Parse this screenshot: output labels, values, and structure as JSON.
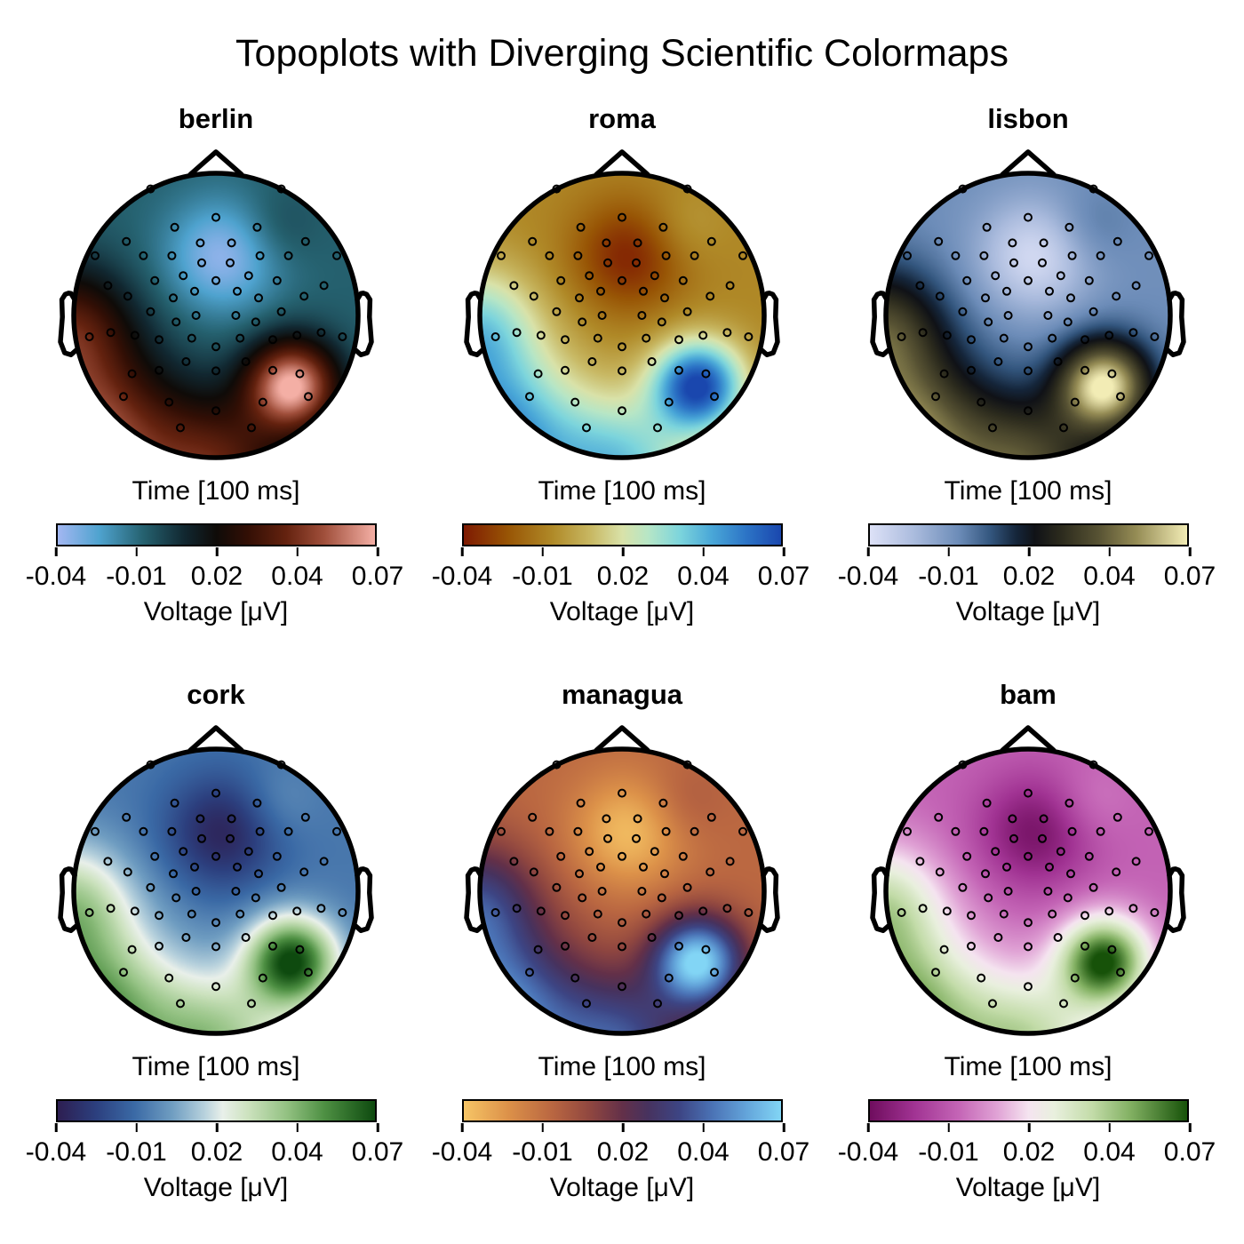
{
  "figure_title": "Topoplots with Diverging Scientific Colormaps",
  "chart_data": {
    "type": "topomap_grid",
    "rows": 2,
    "cols": 3,
    "time_label": "Time [100 ms]",
    "colorbar_label": "Voltage [μV]",
    "colorbar_ticks": [
      "-0.04",
      "-0.01",
      "0.02",
      "0.04",
      "0.07"
    ],
    "colorbar_tick_positions": [
      0,
      0.25,
      0.5,
      0.75,
      1
    ],
    "value_range": {
      "vmin": -0.04,
      "vmax": 0.07
    },
    "subplots": [
      {
        "title": "berlin",
        "colormap": [
          [
            0.0,
            "#A3B7F2"
          ],
          [
            0.13,
            "#4FA3CF"
          ],
          [
            0.27,
            "#25616F"
          ],
          [
            0.4,
            "#112730"
          ],
          [
            0.5,
            "#0F0B08"
          ],
          [
            0.6,
            "#330F05"
          ],
          [
            0.72,
            "#64220F"
          ],
          [
            0.84,
            "#A04F3B"
          ],
          [
            1.0,
            "#F4AFA5"
          ]
        ]
      },
      {
        "title": "roma",
        "colormap": [
          [
            0.0,
            "#7E1A02"
          ],
          [
            0.14,
            "#985505"
          ],
          [
            0.28,
            "#B08A28"
          ],
          [
            0.4,
            "#C8B863"
          ],
          [
            0.5,
            "#D9E2A9"
          ],
          [
            0.58,
            "#B7E6C6"
          ],
          [
            0.68,
            "#7DD5DC"
          ],
          [
            0.78,
            "#4AA8D8"
          ],
          [
            0.89,
            "#2C74C6"
          ],
          [
            1.0,
            "#1A47AE"
          ]
        ]
      },
      {
        "title": "lisbon",
        "colormap": [
          [
            0.0,
            "#DDE1F7"
          ],
          [
            0.14,
            "#AABBDD"
          ],
          [
            0.28,
            "#6C8CB8"
          ],
          [
            0.38,
            "#33567E"
          ],
          [
            0.46,
            "#15263B"
          ],
          [
            0.52,
            "#101217"
          ],
          [
            0.6,
            "#2B2A1D"
          ],
          [
            0.72,
            "#575233"
          ],
          [
            0.84,
            "#958C55"
          ],
          [
            1.0,
            "#F2ECB5"
          ]
        ]
      },
      {
        "title": "cork",
        "colormap": [
          [
            0.0,
            "#2D1E51"
          ],
          [
            0.12,
            "#2C3F7E"
          ],
          [
            0.24,
            "#3A69A5"
          ],
          [
            0.36,
            "#6F9DC1"
          ],
          [
            0.46,
            "#B5D0DC"
          ],
          [
            0.52,
            "#E9F0EA"
          ],
          [
            0.6,
            "#CCE2BE"
          ],
          [
            0.72,
            "#94C283"
          ],
          [
            0.84,
            "#4E9043"
          ],
          [
            1.0,
            "#0E4A0F"
          ]
        ]
      },
      {
        "title": "managua",
        "colormap": [
          [
            0.0,
            "#F6C566"
          ],
          [
            0.14,
            "#DC9149"
          ],
          [
            0.28,
            "#B96641"
          ],
          [
            0.4,
            "#8F4640"
          ],
          [
            0.5,
            "#633049"
          ],
          [
            0.58,
            "#47325E"
          ],
          [
            0.68,
            "#3D4584"
          ],
          [
            0.78,
            "#4A71B4"
          ],
          [
            0.89,
            "#63A4DA"
          ],
          [
            1.0,
            "#82D5F5"
          ]
        ]
      },
      {
        "title": "bam",
        "colormap": [
          [
            0.0,
            "#6F0D5E"
          ],
          [
            0.14,
            "#A13393"
          ],
          [
            0.28,
            "#C465B6"
          ],
          [
            0.4,
            "#E0A2D5"
          ],
          [
            0.5,
            "#F5E4F0"
          ],
          [
            0.58,
            "#E9F0DE"
          ],
          [
            0.7,
            "#C3DCA9"
          ],
          [
            0.82,
            "#83B163"
          ],
          [
            1.0,
            "#175209"
          ]
        ]
      }
    ],
    "field_model": {
      "comment": "Shared voltage topography v(x,y) in head-normalized coords (y down): base plus gaussian sources; negative focus fronto-central, positive left-posterior rim and right-parietal focus.",
      "base": -0.01,
      "gaussians": [
        {
          "a": -0.027,
          "x": 0.05,
          "y": -0.42,
          "s": 0.4
        },
        {
          "a": 0.065,
          "x": -0.9,
          "y": 0.9,
          "s": 0.6
        },
        {
          "a": 0.08,
          "x": 0.54,
          "y": 0.5,
          "s": 0.32
        },
        {
          "a": 0.045,
          "x": 0.0,
          "y": 1.1,
          "s": 0.5
        },
        {
          "a": 0.042,
          "x": -1.05,
          "y": 0.1,
          "s": 0.45
        },
        {
          "a": 0.008,
          "x": 0.42,
          "y": -0.62,
          "s": 0.28
        }
      ]
    },
    "electrodes": [
      [
        0.0,
        -0.69
      ],
      [
        0.0,
        -0.245
      ],
      [
        0.0,
        0.22
      ],
      [
        0.0,
        0.39
      ],
      [
        0.0,
        0.67
      ],
      [
        0.29,
        -0.62
      ],
      [
        -0.29,
        -0.62
      ],
      [
        0.46,
        -0.89
      ],
      [
        -0.46,
        -0.89
      ],
      [
        0.85,
        -0.42
      ],
      [
        -0.85,
        -0.42
      ],
      [
        0.63,
        -0.52
      ],
      [
        -0.63,
        -0.52
      ],
      [
        0.51,
        -0.42
      ],
      [
        -0.51,
        -0.42
      ],
      [
        0.31,
        -0.42
      ],
      [
        -0.31,
        -0.42
      ],
      [
        0.11,
        -0.51
      ],
      [
        -0.11,
        -0.51
      ],
      [
        0.1,
        -0.37
      ],
      [
        -0.1,
        -0.37
      ],
      [
        0.23,
        -0.28
      ],
      [
        -0.23,
        -0.28
      ],
      [
        0.43,
        -0.245
      ],
      [
        -0.43,
        -0.245
      ],
      [
        0.76,
        -0.21
      ],
      [
        -0.76,
        -0.21
      ],
      [
        0.62,
        -0.135
      ],
      [
        -0.62,
        -0.135
      ],
      [
        0.3,
        -0.123
      ],
      [
        -0.3,
        -0.123
      ],
      [
        0.15,
        -0.17
      ],
      [
        -0.15,
        -0.17
      ],
      [
        0.46,
        -0.026
      ],
      [
        -0.46,
        -0.026
      ],
      [
        0.14,
        0.0
      ],
      [
        -0.14,
        0.0
      ],
      [
        0.89,
        0.15
      ],
      [
        -0.89,
        0.15
      ],
      [
        0.74,
        0.12
      ],
      [
        -0.74,
        0.12
      ],
      [
        0.57,
        0.14
      ],
      [
        -0.57,
        0.14
      ],
      [
        0.28,
        0.046
      ],
      [
        -0.28,
        0.046
      ],
      [
        0.4,
        0.17
      ],
      [
        -0.4,
        0.17
      ],
      [
        0.17,
        0.16
      ],
      [
        -0.17,
        0.16
      ],
      [
        0.59,
        0.41
      ],
      [
        -0.59,
        0.41
      ],
      [
        0.4,
        0.386
      ],
      [
        -0.4,
        0.386
      ],
      [
        0.21,
        0.325
      ],
      [
        -0.21,
        0.325
      ],
      [
        0.65,
        0.57
      ],
      [
        -0.65,
        0.57
      ],
      [
        0.33,
        0.61
      ],
      [
        -0.33,
        0.61
      ],
      [
        0.25,
        0.79
      ],
      [
        -0.25,
        0.79
      ]
    ]
  }
}
